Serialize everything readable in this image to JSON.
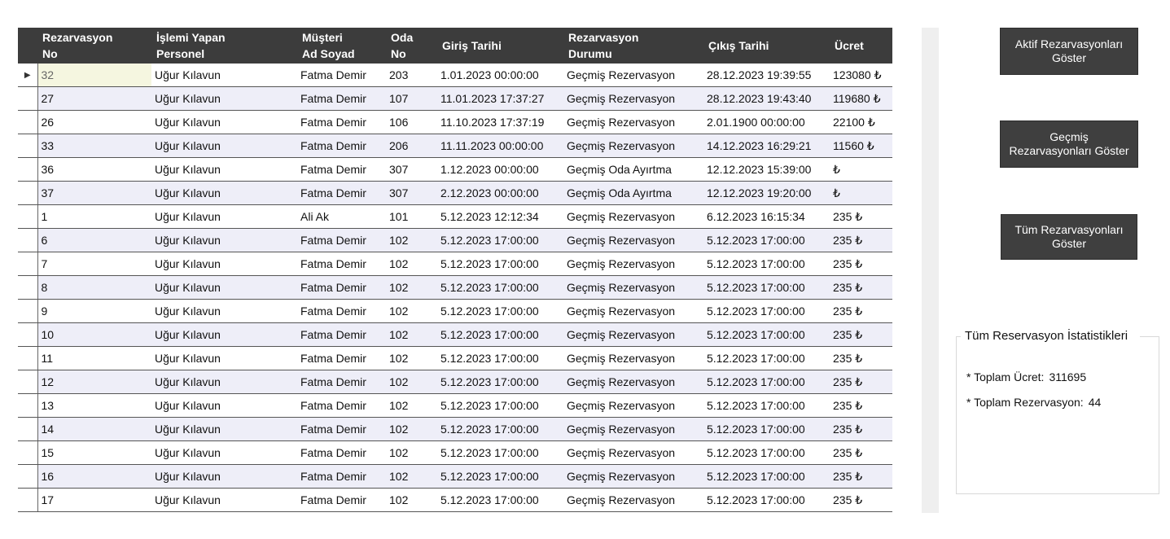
{
  "table": {
    "columns": [
      "Rezarvasyon\nNo",
      "İşlemi Yapan\nPersonel",
      "Müşteri\nAd Soyad",
      "Oda\nNo",
      "Giriş Tarihi",
      "Rezarvasyon\nDurumu",
      "Çıkış Tarihi",
      "Ücret"
    ],
    "current_row_indicator": "▶",
    "rows": [
      [
        "32",
        "Uğur Kılavun",
        "Fatma Demir",
        "203",
        "1.01.2023 00:00:00",
        "Geçmiş Rezervasyon",
        "28.12.2023 19:39:55",
        "123080 ₺"
      ],
      [
        "27",
        "Uğur Kılavun",
        "Fatma Demir",
        "107",
        "11.01.2023 17:37:27",
        "Geçmiş Rezervasyon",
        "28.12.2023 19:43:40",
        "119680 ₺"
      ],
      [
        "26",
        "Uğur Kılavun",
        "Fatma Demir",
        "106",
        "11.10.2023 17:37:19",
        "Geçmiş Rezervasyon",
        "2.01.1900 00:00:00",
        "22100 ₺"
      ],
      [
        "33",
        "Uğur Kılavun",
        "Fatma Demir",
        "206",
        "11.11.2023 00:00:00",
        "Geçmiş Rezervasyon",
        "14.12.2023 16:29:21",
        "11560 ₺"
      ],
      [
        "36",
        "Uğur Kılavun",
        "Fatma Demir",
        "307",
        "1.12.2023 00:00:00",
        "Geçmiş Oda Ayırtma",
        "12.12.2023 15:39:00",
        " ₺"
      ],
      [
        "37",
        "Uğur Kılavun",
        "Fatma Demir",
        "307",
        "2.12.2023 00:00:00",
        "Geçmiş Oda Ayırtma",
        "12.12.2023 19:20:00",
        " ₺"
      ],
      [
        "1",
        "Uğur Kılavun",
        "Ali Ak",
        "101",
        "5.12.2023 12:12:34",
        "Geçmiş Rezervasyon",
        "6.12.2023 16:15:34",
        "235 ₺"
      ],
      [
        "6",
        "Uğur Kılavun",
        "Fatma Demir",
        "102",
        "5.12.2023 17:00:00",
        "Geçmiş Rezervasyon",
        "5.12.2023 17:00:00",
        "235 ₺"
      ],
      [
        "7",
        "Uğur Kılavun",
        "Fatma Demir",
        "102",
        "5.12.2023 17:00:00",
        "Geçmiş Rezervasyon",
        "5.12.2023 17:00:00",
        "235 ₺"
      ],
      [
        "8",
        "Uğur Kılavun",
        "Fatma Demir",
        "102",
        "5.12.2023 17:00:00",
        "Geçmiş Rezervasyon",
        "5.12.2023 17:00:00",
        "235 ₺"
      ],
      [
        "9",
        "Uğur Kılavun",
        "Fatma Demir",
        "102",
        "5.12.2023 17:00:00",
        "Geçmiş Rezervasyon",
        "5.12.2023 17:00:00",
        "235 ₺"
      ],
      [
        "10",
        "Uğur Kılavun",
        "Fatma Demir",
        "102",
        "5.12.2023 17:00:00",
        "Geçmiş Rezervasyon",
        "5.12.2023 17:00:00",
        "235 ₺"
      ],
      [
        "11",
        "Uğur Kılavun",
        "Fatma Demir",
        "102",
        "5.12.2023 17:00:00",
        "Geçmiş Rezervasyon",
        "5.12.2023 17:00:00",
        "235 ₺"
      ],
      [
        "12",
        "Uğur Kılavun",
        "Fatma Demir",
        "102",
        "5.12.2023 17:00:00",
        "Geçmiş Rezervasyon",
        "5.12.2023 17:00:00",
        "235 ₺"
      ],
      [
        "13",
        "Uğur Kılavun",
        "Fatma Demir",
        "102",
        "5.12.2023 17:00:00",
        "Geçmiş Rezervasyon",
        "5.12.2023 17:00:00",
        "235 ₺"
      ],
      [
        "14",
        "Uğur Kılavun",
        "Fatma Demir",
        "102",
        "5.12.2023 17:00:00",
        "Geçmiş Rezervasyon",
        "5.12.2023 17:00:00",
        "235 ₺"
      ],
      [
        "15",
        "Uğur Kılavun",
        "Fatma Demir",
        "102",
        "5.12.2023 17:00:00",
        "Geçmiş Rezervasyon",
        "5.12.2023 17:00:00",
        "235 ₺"
      ],
      [
        "16",
        "Uğur Kılavun",
        "Fatma Demir",
        "102",
        "5.12.2023 17:00:00",
        "Geçmiş Rezervasyon",
        "5.12.2023 17:00:00",
        "235 ₺"
      ],
      [
        "17",
        "Uğur Kılavun",
        "Fatma Demir",
        "102",
        "5.12.2023 17:00:00",
        "Geçmiş Rezervasyon",
        "5.12.2023 17:00:00",
        "235 ₺"
      ]
    ]
  },
  "buttons": {
    "aktif": "Aktif Rezarvasyonları\nGöster",
    "gecmis": "Geçmiş\nRezarvasyonları Göster",
    "tum": "Tüm Rezarvasyonları\nGöster"
  },
  "stats": {
    "title": "Tüm Reservasyon İstatistikleri",
    "toplam_ucret_label": "* Toplam Ücret:",
    "toplam_ucret_value": "311695",
    "toplam_rez_label": "* Toplam Rezervasyon:",
    "toplam_rez_value": "44"
  },
  "colors": {
    "header_bg": "#3c3c3c",
    "alt_row_bg": "#eeeef8",
    "selected_cell_bg": "#f5f6e0",
    "button_bg": "#3f3f3f"
  }
}
